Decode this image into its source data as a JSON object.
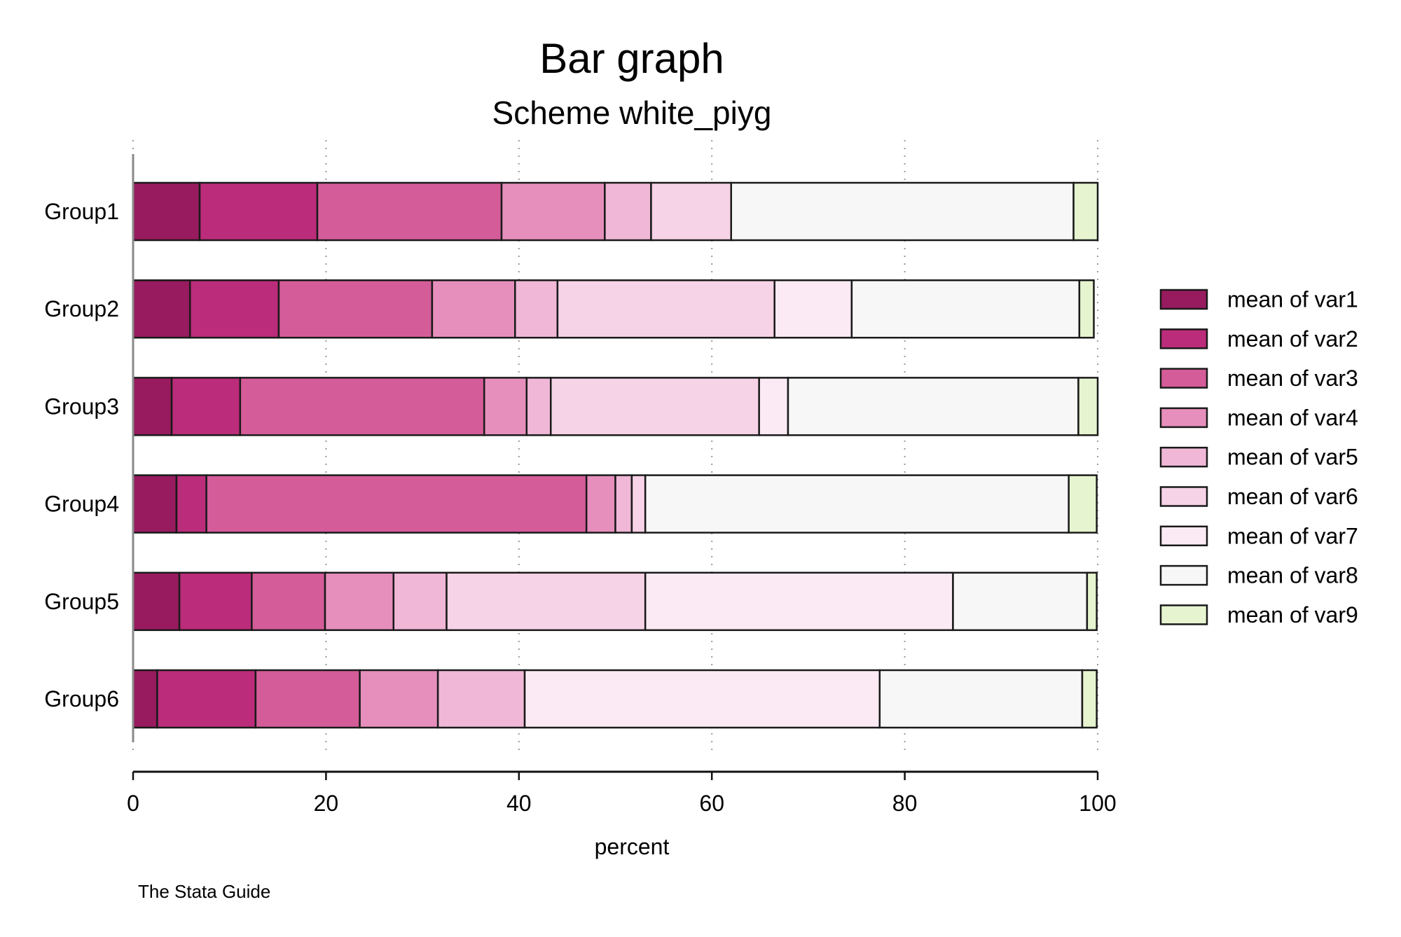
{
  "chart_data": {
    "type": "bar",
    "orientation": "horizontal",
    "stacked": true,
    "title": "Bar graph",
    "subtitle": "Scheme white_piyg",
    "xlabel": "percent",
    "ylabel": "",
    "note": "The Stata Guide",
    "xlim": [
      0,
      100
    ],
    "xticks": [
      "0",
      "20",
      "40",
      "60",
      "80",
      "100"
    ],
    "grid": true,
    "legend_position": "right",
    "categories": [
      "Group1",
      "Group2",
      "Group3",
      "Group4",
      "Group5",
      "Group6"
    ],
    "series": [
      {
        "name": "mean of var1",
        "color": "#971B5E",
        "values": [
          6.9,
          5.9,
          4.0,
          4.5,
          4.8,
          2.5
        ]
      },
      {
        "name": "mean of var2",
        "color": "#BB2C7A",
        "values": [
          12.2,
          9.2,
          7.1,
          3.1,
          7.5,
          10.2
        ]
      },
      {
        "name": "mean of var3",
        "color": "#D45C99",
        "values": [
          19.1,
          15.9,
          25.3,
          39.4,
          7.6,
          10.8
        ]
      },
      {
        "name": "mean of var4",
        "color": "#E68FBC",
        "values": [
          10.7,
          8.6,
          4.4,
          3.0,
          7.1,
          8.1
        ]
      },
      {
        "name": "mean of var5",
        "color": "#F0B7D6",
        "values": [
          4.8,
          4.4,
          2.5,
          1.7,
          5.5,
          9.0
        ]
      },
      {
        "name": "mean of var6",
        "color": "#F7D3E7",
        "values": [
          8.3,
          22.5,
          21.6,
          1.4,
          20.6,
          0.0
        ]
      },
      {
        "name": "mean of var7",
        "color": "#FBEAF3",
        "values": [
          0.0,
          8.0,
          3.0,
          0.0,
          31.9,
          36.8
        ]
      },
      {
        "name": "mean of var8",
        "color": "#F7F7F7",
        "values": [
          35.5,
          23.6,
          30.1,
          43.9,
          13.9,
          21.0
        ]
      },
      {
        "name": "mean of var9",
        "color": "#E6F5D0",
        "values": [
          2.5,
          1.5,
          2.0,
          2.9,
          1.0,
          1.5
        ]
      }
    ]
  }
}
